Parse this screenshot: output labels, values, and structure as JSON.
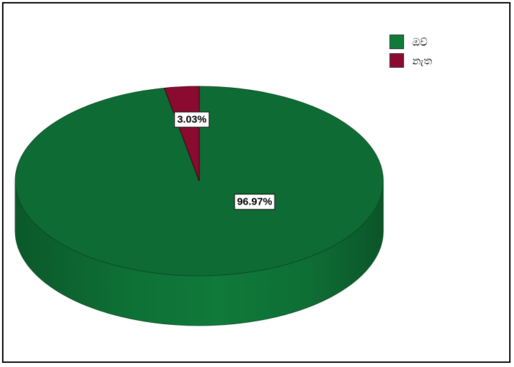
{
  "chart_data": {
    "type": "pie",
    "style": "3d",
    "categories": [
      "ඔව්",
      "නැත"
    ],
    "values": [
      96.97,
      3.03
    ],
    "value_labels": [
      "96.97%",
      "3.03%"
    ],
    "colors": [
      "#0f7a3a",
      "#8b0a30"
    ],
    "legend_position": "top-right",
    "title": ""
  }
}
